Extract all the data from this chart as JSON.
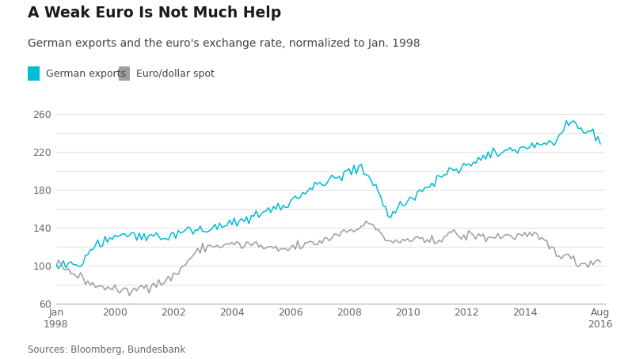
{
  "title": "A Weak Euro Is Not Much Help",
  "subtitle": "German exports and the euro's exchange rate, normalized to Jan. 1998",
  "source": "Sources: Bloomberg, Bundesbank",
  "legend": [
    "German exports",
    "Euro/dollar spot"
  ],
  "export_color": "#00bcd4",
  "euro_color": "#9e9e9e",
  "ylim": [
    60,
    270
  ],
  "yticks": [
    60,
    80,
    100,
    120,
    140,
    160,
    180,
    200,
    220,
    240,
    260
  ],
  "ytick_labels": [
    "60",
    "",
    "100",
    "",
    "140",
    "",
    "180",
    "",
    "220",
    "",
    "260"
  ],
  "background_color": "#ffffff",
  "grid_color": "#e0e0e0",
  "xtick_positions": [
    1998.0,
    2000,
    2002,
    2004,
    2006,
    2008,
    2010,
    2012,
    2014,
    2016.583
  ],
  "xtick_labels": [
    "Jan\n1998",
    "2000",
    "2002",
    "2004",
    "2006",
    "2008",
    "2010",
    "2012",
    "2014",
    "Aug\n2016"
  ],
  "german_exports_x": [
    1998.0,
    1998.08,
    1998.17,
    1998.25,
    1998.33,
    1998.42,
    1998.5,
    1998.58,
    1998.67,
    1998.75,
    1998.83,
    1998.92,
    1999.0,
    1999.08,
    1999.17,
    1999.25,
    1999.33,
    1999.42,
    1999.5,
    1999.58,
    1999.67,
    1999.75,
    1999.83,
    1999.92,
    2000.0,
    2000.08,
    2000.17,
    2000.25,
    2000.33,
    2000.42,
    2000.5,
    2000.58,
    2000.67,
    2000.75,
    2000.83,
    2000.92,
    2001.0,
    2001.08,
    2001.17,
    2001.25,
    2001.33,
    2001.42,
    2001.5,
    2001.58,
    2001.67,
    2001.75,
    2001.83,
    2001.92,
    2002.0,
    2002.08,
    2002.17,
    2002.25,
    2002.33,
    2002.42,
    2002.5,
    2002.58,
    2002.67,
    2002.75,
    2002.83,
    2002.92,
    2003.0,
    2003.08,
    2003.17,
    2003.25,
    2003.33,
    2003.42,
    2003.5,
    2003.58,
    2003.67,
    2003.75,
    2003.83,
    2003.92,
    2004.0,
    2004.08,
    2004.17,
    2004.25,
    2004.33,
    2004.42,
    2004.5,
    2004.58,
    2004.67,
    2004.75,
    2004.83,
    2004.92,
    2005.0,
    2005.08,
    2005.17,
    2005.25,
    2005.33,
    2005.42,
    2005.5,
    2005.58,
    2005.67,
    2005.75,
    2005.83,
    2005.92,
    2006.0,
    2006.08,
    2006.17,
    2006.25,
    2006.33,
    2006.42,
    2006.5,
    2006.58,
    2006.67,
    2006.75,
    2006.83,
    2006.92,
    2007.0,
    2007.08,
    2007.17,
    2007.25,
    2007.33,
    2007.42,
    2007.5,
    2007.58,
    2007.67,
    2007.75,
    2007.83,
    2007.92,
    2008.0,
    2008.08,
    2008.17,
    2008.25,
    2008.33,
    2008.42,
    2008.5,
    2008.58,
    2008.67,
    2008.75,
    2008.83,
    2008.92,
    2009.0,
    2009.08,
    2009.17,
    2009.25,
    2009.33,
    2009.42,
    2009.5,
    2009.58,
    2009.67,
    2009.75,
    2009.83,
    2009.92,
    2010.0,
    2010.08,
    2010.17,
    2010.25,
    2010.33,
    2010.42,
    2010.5,
    2010.58,
    2010.67,
    2010.75,
    2010.83,
    2010.92,
    2011.0,
    2011.08,
    2011.17,
    2011.25,
    2011.33,
    2011.42,
    2011.5,
    2011.58,
    2011.67,
    2011.75,
    2011.83,
    2011.92,
    2012.0,
    2012.08,
    2012.17,
    2012.25,
    2012.33,
    2012.42,
    2012.5,
    2012.58,
    2012.67,
    2012.75,
    2012.83,
    2012.92,
    2013.0,
    2013.08,
    2013.17,
    2013.25,
    2013.33,
    2013.42,
    2013.5,
    2013.58,
    2013.67,
    2013.75,
    2013.83,
    2013.92,
    2014.0,
    2014.08,
    2014.17,
    2014.25,
    2014.33,
    2014.42,
    2014.5,
    2014.58,
    2014.67,
    2014.75,
    2014.83,
    2014.92,
    2015.0,
    2015.08,
    2015.17,
    2015.25,
    2015.33,
    2015.42,
    2015.5,
    2015.58,
    2015.67,
    2015.75,
    2015.83,
    2015.92,
    2016.0,
    2016.08,
    2016.17,
    2016.25,
    2016.33,
    2016.42,
    2016.5,
    2016.58
  ],
  "german_exports_y": [
    100,
    97,
    99,
    101,
    98,
    103,
    100,
    99,
    102,
    98,
    100,
    103,
    110,
    116,
    121,
    118,
    123,
    126,
    122,
    124,
    127,
    125,
    129,
    131,
    133,
    130,
    134,
    132,
    135,
    131,
    133,
    130,
    134,
    129,
    132,
    130,
    133,
    131,
    135,
    132,
    129,
    134,
    131,
    128,
    132,
    130,
    128,
    131,
    134,
    133,
    136,
    135,
    137,
    136,
    138,
    137,
    135,
    138,
    136,
    139,
    137,
    136,
    138,
    140,
    137,
    140,
    138,
    142,
    139,
    143,
    141,
    144,
    143,
    146,
    148,
    145,
    149,
    147,
    151,
    149,
    153,
    151,
    154,
    152,
    156,
    158,
    155,
    160,
    157,
    161,
    159,
    163,
    160,
    164,
    162,
    165,
    167,
    170,
    173,
    171,
    175,
    178,
    176,
    180,
    182,
    179,
    183,
    185,
    187,
    185,
    189,
    187,
    191,
    189,
    193,
    191,
    194,
    192,
    196,
    198,
    200,
    198,
    202,
    200,
    203,
    201,
    199,
    197,
    194,
    191,
    188,
    185,
    180,
    172,
    165,
    158,
    154,
    151,
    155,
    158,
    161,
    164,
    167,
    163,
    167,
    170,
    174,
    172,
    176,
    179,
    177,
    181,
    184,
    182,
    186,
    185,
    190,
    193,
    196,
    194,
    198,
    201,
    199,
    202,
    199,
    196,
    200,
    203,
    206,
    209,
    207,
    211,
    208,
    213,
    210,
    214,
    212,
    216,
    214,
    217,
    218,
    217,
    220,
    218,
    222,
    220,
    223,
    221,
    224,
    222,
    225,
    223,
    224,
    226,
    224,
    228,
    226,
    229,
    227,
    230,
    228,
    226,
    229,
    227,
    230,
    233,
    236,
    238,
    241,
    243,
    246,
    248,
    250,
    248,
    245,
    243,
    242,
    240,
    243,
    241,
    238,
    236,
    234,
    232
  ],
  "euro_dollar_x": [
    1998.0,
    1998.08,
    1998.17,
    1998.25,
    1998.33,
    1998.42,
    1998.5,
    1998.58,
    1998.67,
    1998.75,
    1998.83,
    1998.92,
    1999.0,
    1999.08,
    1999.17,
    1999.25,
    1999.33,
    1999.42,
    1999.5,
    1999.58,
    1999.67,
    1999.75,
    1999.83,
    1999.92,
    2000.0,
    2000.08,
    2000.17,
    2000.25,
    2000.33,
    2000.42,
    2000.5,
    2000.58,
    2000.67,
    2000.75,
    2000.83,
    2000.92,
    2001.0,
    2001.08,
    2001.17,
    2001.25,
    2001.33,
    2001.42,
    2001.5,
    2001.58,
    2001.67,
    2001.75,
    2001.83,
    2001.92,
    2002.0,
    2002.08,
    2002.17,
    2002.25,
    2002.33,
    2002.42,
    2002.5,
    2002.58,
    2002.67,
    2002.75,
    2002.83,
    2002.92,
    2003.0,
    2003.08,
    2003.17,
    2003.25,
    2003.33,
    2003.42,
    2003.5,
    2003.58,
    2003.67,
    2003.75,
    2003.83,
    2003.92,
    2004.0,
    2004.08,
    2004.17,
    2004.25,
    2004.33,
    2004.42,
    2004.5,
    2004.58,
    2004.67,
    2004.75,
    2004.83,
    2004.92,
    2005.0,
    2005.08,
    2005.17,
    2005.25,
    2005.33,
    2005.42,
    2005.5,
    2005.58,
    2005.67,
    2005.75,
    2005.83,
    2005.92,
    2006.0,
    2006.08,
    2006.17,
    2006.25,
    2006.33,
    2006.42,
    2006.5,
    2006.58,
    2006.67,
    2006.75,
    2006.83,
    2006.92,
    2007.0,
    2007.08,
    2007.17,
    2007.25,
    2007.33,
    2007.42,
    2007.5,
    2007.58,
    2007.67,
    2007.75,
    2007.83,
    2007.92,
    2008.0,
    2008.08,
    2008.17,
    2008.25,
    2008.33,
    2008.42,
    2008.5,
    2008.58,
    2008.67,
    2008.75,
    2008.83,
    2008.92,
    2009.0,
    2009.08,
    2009.17,
    2009.25,
    2009.33,
    2009.42,
    2009.5,
    2009.58,
    2009.67,
    2009.75,
    2009.83,
    2009.92,
    2010.0,
    2010.08,
    2010.17,
    2010.25,
    2010.33,
    2010.42,
    2010.5,
    2010.58,
    2010.67,
    2010.75,
    2010.83,
    2010.92,
    2011.0,
    2011.08,
    2011.17,
    2011.25,
    2011.33,
    2011.42,
    2011.5,
    2011.58,
    2011.67,
    2011.75,
    2011.83,
    2011.92,
    2012.0,
    2012.08,
    2012.17,
    2012.25,
    2012.33,
    2012.42,
    2012.5,
    2012.58,
    2012.67,
    2012.75,
    2012.83,
    2012.92,
    2013.0,
    2013.08,
    2013.17,
    2013.25,
    2013.33,
    2013.42,
    2013.5,
    2013.58,
    2013.67,
    2013.75,
    2013.83,
    2013.92,
    2014.0,
    2014.08,
    2014.17,
    2014.25,
    2014.33,
    2014.42,
    2014.5,
    2014.58,
    2014.67,
    2014.75,
    2014.83,
    2014.92,
    2015.0,
    2015.08,
    2015.17,
    2015.25,
    2015.33,
    2015.42,
    2015.5,
    2015.58,
    2015.67,
    2015.75,
    2015.83,
    2015.92,
    2016.0,
    2016.08,
    2016.17,
    2016.25,
    2016.33,
    2016.42,
    2016.5,
    2016.58
  ],
  "euro_dollar_y": [
    100,
    103,
    101,
    99,
    97,
    95,
    93,
    91,
    89,
    88,
    87,
    86,
    85,
    83,
    81,
    80,
    79,
    78,
    77,
    76,
    77,
    78,
    77,
    76,
    75,
    73,
    74,
    72,
    71,
    73,
    72,
    74,
    73,
    75,
    76,
    77,
    78,
    80,
    79,
    81,
    82,
    80,
    81,
    83,
    82,
    84,
    85,
    87,
    89,
    91,
    93,
    96,
    99,
    102,
    105,
    108,
    110,
    112,
    114,
    116,
    118,
    119,
    121,
    120,
    119,
    121,
    122,
    120,
    121,
    120,
    122,
    124,
    122,
    121,
    123,
    122,
    120,
    121,
    123,
    122,
    121,
    123,
    122,
    121,
    120,
    118,
    119,
    117,
    118,
    116,
    117,
    115,
    116,
    118,
    117,
    116,
    118,
    120,
    119,
    121,
    120,
    122,
    121,
    122,
    124,
    123,
    122,
    124,
    126,
    125,
    127,
    129,
    128,
    130,
    132,
    134,
    133,
    135,
    137,
    136,
    138,
    137,
    139,
    141,
    140,
    142,
    141,
    143,
    142,
    144,
    143,
    140,
    138,
    135,
    130,
    128,
    125,
    122,
    124,
    126,
    123,
    125,
    127,
    126,
    128,
    127,
    126,
    128,
    127,
    126,
    124,
    126,
    125,
    124,
    126,
    125,
    126,
    128,
    130,
    132,
    133,
    135,
    134,
    133,
    131,
    132,
    130,
    131,
    130,
    132,
    131,
    133,
    132,
    130,
    131,
    130,
    129,
    131,
    130,
    129,
    130,
    132,
    131,
    130,
    132,
    131,
    130,
    132,
    131,
    130,
    132,
    133,
    131,
    130,
    132,
    131,
    130,
    129,
    128,
    127,
    125,
    123,
    120,
    118,
    116,
    114,
    113,
    112,
    111,
    110,
    108,
    107,
    106,
    104,
    103,
    102,
    101,
    102,
    103,
    105,
    104,
    103,
    105,
    106
  ]
}
